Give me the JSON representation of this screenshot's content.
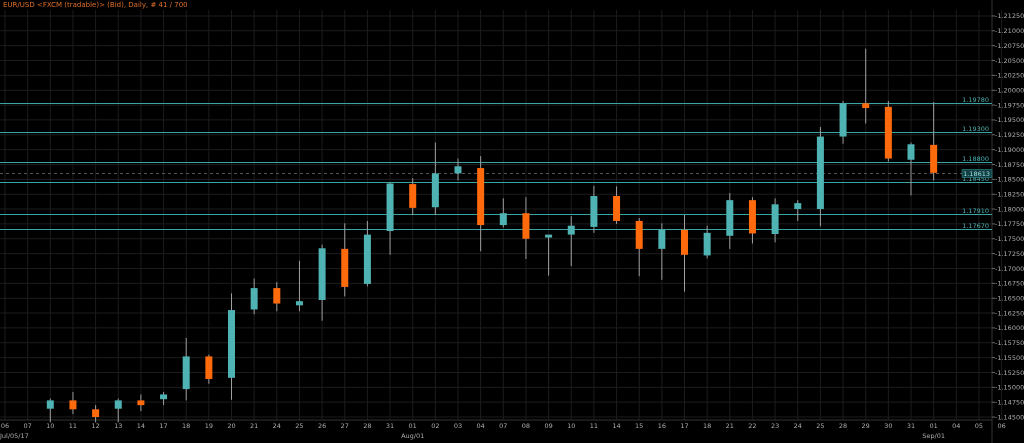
{
  "title": "EUR/USD <FXCM (tradable)> (Bid), Daily, # 41 / 700",
  "colors": {
    "background": "#000000",
    "bullish": "#4fb3b3",
    "bearish": "#ff6a0d",
    "wick": "#a0a0a0",
    "grid": "#1c1c1c",
    "level_line": "#3aa3a3",
    "current_price_line": "#555555",
    "axis_text": "#b0b0b0",
    "level_text": "#4fb3b3",
    "title_text": "#e0702a"
  },
  "chart_data": {
    "type": "candlestick",
    "title": "EUR/USD <FXCM (tradable)> (Bid), Daily, # 41 / 700",
    "ylim": [
      1.1445,
      1.2135
    ],
    "y_ticks": [
      "1.14500",
      "1.14750",
      "1.15000",
      "1.15250",
      "1.15500",
      "1.15750",
      "1.16000",
      "1.16250",
      "1.16500",
      "1.16750",
      "1.17000",
      "1.17250",
      "1.17500",
      "1.17750",
      "1.18000",
      "1.18250",
      "1.18500",
      "1.18750",
      "1.19000",
      "1.19250",
      "1.19500",
      "1.19750",
      "1.20000",
      "1.20250",
      "1.20500",
      "1.20750",
      "1.21000",
      "1.21250"
    ],
    "x_labels": [
      "06",
      "07",
      "10",
      "11",
      "12",
      "13",
      "14",
      "17",
      "18",
      "19",
      "20",
      "21",
      "24",
      "25",
      "26",
      "27",
      "28",
      "31",
      "01",
      "02",
      "03",
      "04",
      "07",
      "08",
      "09",
      "10",
      "11",
      "14",
      "15",
      "16",
      "17",
      "18",
      "21",
      "22",
      "23",
      "24",
      "25",
      "28",
      "29",
      "30",
      "31",
      "01",
      "04",
      "05",
      "06"
    ],
    "month_labels": [
      {
        "label": "Jul/05/17",
        "slot": 0
      },
      {
        "label": "Aug/01",
        "slot": 18
      },
      {
        "label": "Sep/01",
        "slot": 41
      }
    ],
    "levels": [
      {
        "label": "1.19780",
        "value": 1.1978
      },
      {
        "label": "1.19300",
        "value": 1.193
      },
      {
        "label": "1.18800",
        "value": 1.188
      },
      {
        "label": "1.18450",
        "value": 1.1845
      },
      {
        "label": "1.17910",
        "value": 1.1791
      },
      {
        "label": "1.17670",
        "value": 1.1767
      }
    ],
    "current_price": {
      "label": "1.18613",
      "value": 1.18613
    },
    "candles": [
      {
        "slot": 2,
        "date": "10",
        "open": 1.1464,
        "high": 1.1481,
        "low": 1.1441,
        "close": 1.1478
      },
      {
        "slot": 3,
        "date": "11",
        "open": 1.1478,
        "high": 1.1492,
        "low": 1.1455,
        "close": 1.1463
      },
      {
        "slot": 4,
        "date": "12",
        "open": 1.1463,
        "high": 1.147,
        "low": 1.1441,
        "close": 1.145
      },
      {
        "slot": 5,
        "date": "13",
        "open": 1.1464,
        "high": 1.1481,
        "low": 1.1441,
        "close": 1.1478
      },
      {
        "slot": 6,
        "date": "14",
        "open": 1.1478,
        "high": 1.1488,
        "low": 1.146,
        "close": 1.147
      },
      {
        "slot": 7,
        "date": "17",
        "open": 1.148,
        "high": 1.1492,
        "low": 1.147,
        "close": 1.1488
      },
      {
        "slot": 8,
        "date": "18",
        "open": 1.1497,
        "high": 1.1583,
        "low": 1.1478,
        "close": 1.1552
      },
      {
        "slot": 9,
        "date": "19",
        "open": 1.1552,
        "high": 1.1555,
        "low": 1.1506,
        "close": 1.1514
      },
      {
        "slot": 10,
        "date": "20",
        "open": 1.1516,
        "high": 1.1658,
        "low": 1.1479,
        "close": 1.163
      },
      {
        "slot": 11,
        "date": "21",
        "open": 1.1631,
        "high": 1.1683,
        "low": 1.1623,
        "close": 1.1667
      },
      {
        "slot": 12,
        "date": "24",
        "open": 1.1667,
        "high": 1.1677,
        "low": 1.1628,
        "close": 1.1641
      },
      {
        "slot": 13,
        "date": "25",
        "open": 1.1638,
        "high": 1.1713,
        "low": 1.1628,
        "close": 1.1645
      },
      {
        "slot": 14,
        "date": "26",
        "open": 1.1647,
        "high": 1.174,
        "low": 1.1612,
        "close": 1.1734
      },
      {
        "slot": 15,
        "date": "27",
        "open": 1.1733,
        "high": 1.1776,
        "low": 1.1653,
        "close": 1.1669
      },
      {
        "slot": 16,
        "date": "28",
        "open": 1.1674,
        "high": 1.178,
        "low": 1.167,
        "close": 1.1757
      },
      {
        "slot": 17,
        "date": "31",
        "open": 1.1763,
        "high": 1.1845,
        "low": 1.1723,
        "close": 1.1843
      },
      {
        "slot": 18,
        "date": "01",
        "open": 1.1842,
        "high": 1.1852,
        "low": 1.179,
        "close": 1.1802
      },
      {
        "slot": 19,
        "date": "02",
        "open": 1.1803,
        "high": 1.1912,
        "low": 1.179,
        "close": 1.186
      },
      {
        "slot": 20,
        "date": "03",
        "open": 1.186,
        "high": 1.1885,
        "low": 1.1848,
        "close": 1.1872
      },
      {
        "slot": 21,
        "date": "04",
        "open": 1.1869,
        "high": 1.1889,
        "low": 1.1729,
        "close": 1.1773
      },
      {
        "slot": 22,
        "date": "07",
        "open": 1.1773,
        "high": 1.1818,
        "low": 1.1769,
        "close": 1.1793
      },
      {
        "slot": 23,
        "date": "08",
        "open": 1.1793,
        "high": 1.182,
        "low": 1.1716,
        "close": 1.175
      },
      {
        "slot": 24,
        "date": "09",
        "open": 1.1752,
        "high": 1.1757,
        "low": 1.1688,
        "close": 1.1757
      },
      {
        "slot": 25,
        "date": "10",
        "open": 1.1757,
        "high": 1.1788,
        "low": 1.1704,
        "close": 1.1772
      },
      {
        "slot": 26,
        "date": "11",
        "open": 1.177,
        "high": 1.1839,
        "low": 1.176,
        "close": 1.1822
      },
      {
        "slot": 27,
        "date": "14",
        "open": 1.1822,
        "high": 1.1838,
        "low": 1.1775,
        "close": 1.178
      },
      {
        "slot": 28,
        "date": "15",
        "open": 1.178,
        "high": 1.1785,
        "low": 1.1687,
        "close": 1.1733
      },
      {
        "slot": 29,
        "date": "16",
        "open": 1.1733,
        "high": 1.1776,
        "low": 1.1681,
        "close": 1.1765
      },
      {
        "slot": 30,
        "date": "17",
        "open": 1.1765,
        "high": 1.179,
        "low": 1.1661,
        "close": 1.1723
      },
      {
        "slot": 31,
        "date": "18",
        "open": 1.1722,
        "high": 1.1772,
        "low": 1.1717,
        "close": 1.176
      },
      {
        "slot": 32,
        "date": "21",
        "open": 1.1755,
        "high": 1.1827,
        "low": 1.1733,
        "close": 1.1815
      },
      {
        "slot": 33,
        "date": "22",
        "open": 1.1815,
        "high": 1.182,
        "low": 1.1742,
        "close": 1.1759
      },
      {
        "slot": 34,
        "date": "23",
        "open": 1.1758,
        "high": 1.1818,
        "low": 1.1744,
        "close": 1.1808
      },
      {
        "slot": 35,
        "date": "24",
        "open": 1.18,
        "high": 1.1815,
        "low": 1.178,
        "close": 1.181
      },
      {
        "slot": 36,
        "date": "25",
        "open": 1.18,
        "high": 1.1938,
        "low": 1.1771,
        "close": 1.1922
      },
      {
        "slot": 37,
        "date": "28",
        "open": 1.1922,
        "high": 1.1982,
        "low": 1.191,
        "close": 1.1978
      },
      {
        "slot": 38,
        "date": "29",
        "open": 1.1978,
        "high": 1.207,
        "low": 1.1944,
        "close": 1.197
      },
      {
        "slot": 39,
        "date": "30",
        "open": 1.1972,
        "high": 1.1982,
        "low": 1.188,
        "close": 1.1885
      },
      {
        "slot": 40,
        "date": "31",
        "open": 1.1883,
        "high": 1.1912,
        "low": 1.1823,
        "close": 1.1909
      },
      {
        "slot": 41,
        "date": "01",
        "open": 1.1908,
        "high": 1.198,
        "low": 1.1848,
        "close": 1.1861
      }
    ]
  }
}
